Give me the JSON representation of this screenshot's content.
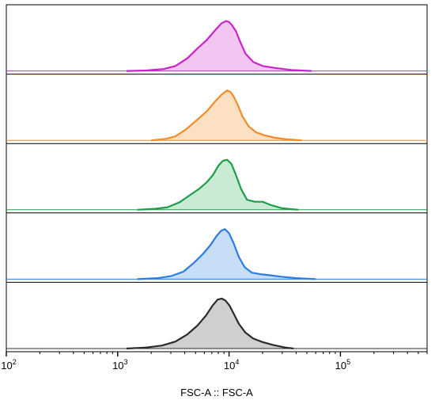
{
  "chart_data": {
    "type": "histogram-overlay",
    "xlabel": "FSC-A :: FSC-A",
    "x_scale": "log",
    "xlim": [
      100,
      600000
    ],
    "x_ticks": [
      {
        "base": "10",
        "exp": "2",
        "value": 100
      },
      {
        "base": "10",
        "exp": "3",
        "value": 1000
      },
      {
        "base": "10",
        "exp": "4",
        "value": 10000
      },
      {
        "base": "10",
        "exp": "5",
        "value": 100000
      }
    ],
    "grid": false,
    "legend": "none",
    "series": [
      {
        "color": "#c925c9",
        "fill": "#f3c6f1",
        "x": [
          1200,
          1800,
          2600,
          3300,
          4200,
          5200,
          6300,
          7400,
          8500,
          9400,
          10000,
          10600,
          11500,
          12500,
          14000,
          16500,
          20000,
          26000,
          36000,
          55000
        ],
        "y": [
          0.0,
          0.01,
          0.04,
          0.1,
          0.25,
          0.45,
          0.62,
          0.8,
          0.95,
          1.0,
          0.98,
          0.92,
          0.8,
          0.6,
          0.35,
          0.18,
          0.1,
          0.06,
          0.02,
          0.0
        ]
      },
      {
        "color": "#f28c28",
        "fill": "#fbe0c4",
        "x": [
          2000,
          2700,
          3300,
          4100,
          5100,
          6300,
          7500,
          8600,
          9600,
          10300,
          11000,
          12000,
          13200,
          15000,
          17500,
          21000,
          26000,
          33000,
          45000
        ],
        "y": [
          0.0,
          0.03,
          0.08,
          0.22,
          0.4,
          0.58,
          0.78,
          0.92,
          1.0,
          0.97,
          0.88,
          0.7,
          0.48,
          0.28,
          0.16,
          0.1,
          0.05,
          0.02,
          0.0
        ]
      },
      {
        "color": "#1e9e4a",
        "fill": "#c9ebd3",
        "x": [
          1500,
          2200,
          2800,
          3600,
          4500,
          5400,
          6300,
          7200,
          8000,
          8800,
          9600,
          10500,
          11500,
          12800,
          14500,
          17000,
          20000,
          24000,
          30000,
          42000
        ],
        "y": [
          0.0,
          0.02,
          0.05,
          0.15,
          0.3,
          0.42,
          0.55,
          0.7,
          0.88,
          0.98,
          1.0,
          0.92,
          0.7,
          0.42,
          0.2,
          0.16,
          0.16,
          0.09,
          0.03,
          0.0
        ]
      },
      {
        "color": "#2a7ee0",
        "fill": "#c8def8",
        "x": [
          1500,
          2300,
          3000,
          3900,
          4800,
          5800,
          6800,
          7700,
          8500,
          9200,
          10000,
          11000,
          12200,
          13800,
          16000,
          19000,
          23000,
          29000,
          40000,
          60000
        ],
        "y": [
          0.0,
          0.02,
          0.06,
          0.15,
          0.32,
          0.5,
          0.68,
          0.86,
          0.97,
          1.0,
          0.92,
          0.72,
          0.45,
          0.24,
          0.13,
          0.1,
          0.08,
          0.05,
          0.02,
          0.0
        ]
      },
      {
        "color": "#2b2b2b",
        "fill": "#cfcfcf",
        "x": [
          1200,
          1800,
          2500,
          3300,
          4200,
          5200,
          6200,
          7100,
          7900,
          8600,
          9300,
          10100,
          11000,
          12200,
          14000,
          16500,
          20000,
          25000,
          32000,
          38000
        ],
        "y": [
          0.0,
          0.02,
          0.06,
          0.14,
          0.28,
          0.46,
          0.66,
          0.86,
          0.98,
          1.0,
          0.96,
          0.86,
          0.7,
          0.5,
          0.32,
          0.2,
          0.13,
          0.07,
          0.02,
          0.0
        ]
      }
    ]
  }
}
